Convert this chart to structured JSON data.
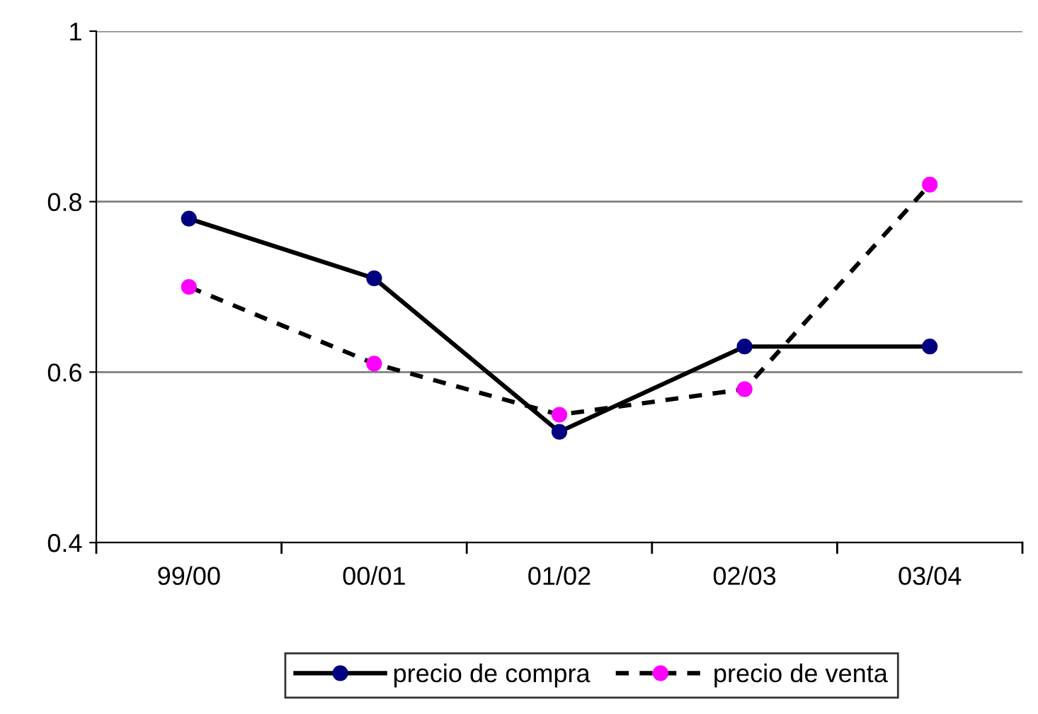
{
  "chart_data": {
    "type": "line",
    "categories": [
      "99/00",
      "00/01",
      "01/02",
      "02/03",
      "03/04"
    ],
    "series": [
      {
        "name": "precio de compra",
        "color": "#000080",
        "values": [
          0.78,
          0.71,
          0.53,
          0.63,
          0.63
        ],
        "line_style": "solid"
      },
      {
        "name": "precio de venta",
        "color": "#ff00ff",
        "values": [
          0.7,
          0.61,
          0.55,
          0.58,
          0.82
        ],
        "line_style": "dashed"
      }
    ],
    "ylim": [
      0.4,
      1
    ],
    "yticks": [
      0.4,
      0.6,
      0.8,
      1
    ],
    "grid": "y",
    "legend": "bottom",
    "marker": "circle"
  }
}
